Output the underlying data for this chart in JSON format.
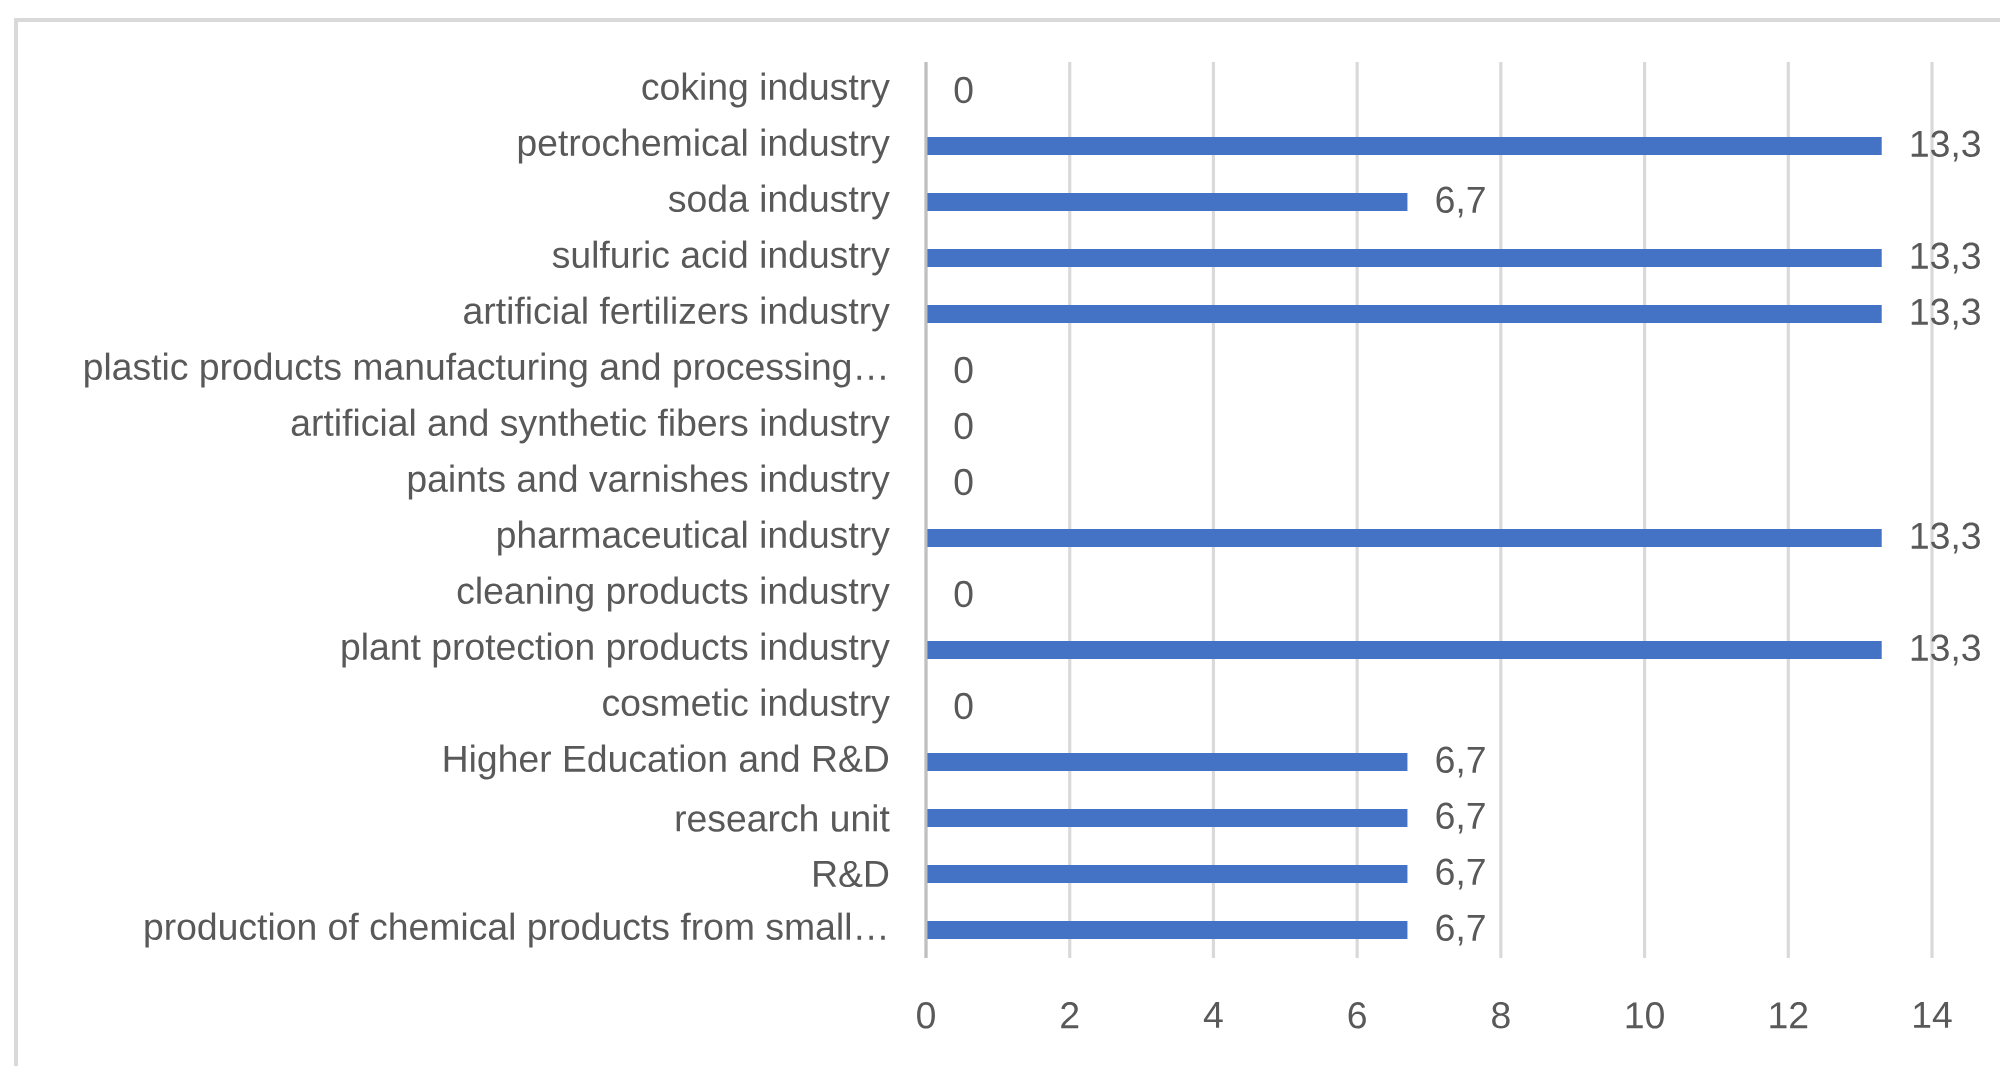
{
  "chart_data": {
    "type": "bar",
    "orientation": "horizontal",
    "categories": [
      "coking industry",
      "petrochemical industry",
      "soda industry",
      "sulfuric acid industry",
      "artificial fertilizers industry",
      "plastic products manufacturing and processing…",
      "artificial and synthetic fibers industry",
      "paints and varnishes industry",
      "pharmaceutical industry",
      "cleaning products industry",
      "plant protection products industry",
      "cosmetic industry",
      "Higher Education and R&D",
      "research unit",
      "R&D",
      "production of chemical products from small…"
    ],
    "values": [
      0,
      13.3,
      6.7,
      13.3,
      13.3,
      0,
      0,
      0,
      13.3,
      0,
      13.3,
      0,
      6.7,
      6.7,
      6.7,
      6.7
    ],
    "value_labels": [
      "0",
      "13,3",
      "6,7",
      "13,3",
      "13,3",
      "0",
      "0",
      "0",
      "13,3",
      "0",
      "13,3",
      "0",
      "6,7",
      "6,7",
      "6,7",
      "6,7"
    ],
    "color": "#4472c4",
    "xlim": [
      0,
      14
    ],
    "xticks": [
      0,
      2,
      4,
      6,
      8,
      10,
      12,
      14
    ],
    "grid": "x"
  }
}
